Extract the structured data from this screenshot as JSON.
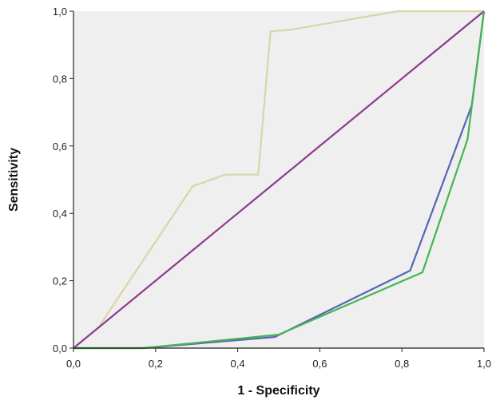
{
  "chart_data": {
    "type": "line",
    "title": "",
    "xlabel": "1 - Specificity",
    "ylabel": "Sensitivity",
    "xlim": [
      0,
      1
    ],
    "ylim": [
      0,
      1
    ],
    "x_ticks": [
      0,
      0.2,
      0.4,
      0.6,
      0.8,
      1.0
    ],
    "y_ticks": [
      0,
      0.2,
      0.4,
      0.6,
      0.8,
      1.0
    ],
    "x_tick_labels": [
      "0,0",
      "0,2",
      "0,4",
      "0,6",
      "0,8",
      "1,0"
    ],
    "y_tick_labels": [
      "0,0",
      "0,2",
      "0,4",
      "0,6",
      "0,8",
      "1,0"
    ],
    "grid": false,
    "legend": "none",
    "plot_background": "#efefef",
    "series": [
      {
        "color": "#d9d5a7",
        "points": [
          [
            0,
            0
          ],
          [
            0.06,
            0.06
          ],
          [
            0.29,
            0.48
          ],
          [
            0.37,
            0.515
          ],
          [
            0.45,
            0.515
          ],
          [
            0.48,
            0.94
          ],
          [
            0.53,
            0.945
          ],
          [
            0.79,
            1.0
          ],
          [
            1.0,
            1.0
          ]
        ]
      },
      {
        "color": "#8e3a8e",
        "points": [
          [
            0,
            0
          ],
          [
            1.0,
            1.0
          ]
        ]
      },
      {
        "color": "#5566b5",
        "points": [
          [
            0,
            0
          ],
          [
            0.17,
            0
          ],
          [
            0.49,
            0.033
          ],
          [
            0.82,
            0.23
          ],
          [
            0.97,
            0.72
          ],
          [
            1.0,
            1.0
          ]
        ]
      },
      {
        "color": "#44b552",
        "points": [
          [
            0,
            0
          ],
          [
            0.17,
            0
          ],
          [
            0.5,
            0.04
          ],
          [
            0.85,
            0.225
          ],
          [
            0.96,
            0.62
          ],
          [
            1.0,
            1.0
          ]
        ]
      }
    ]
  }
}
